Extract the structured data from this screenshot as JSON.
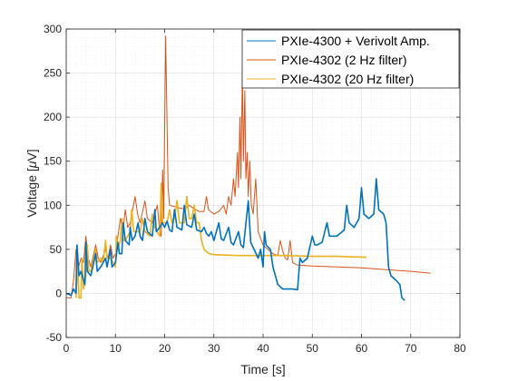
{
  "chart_data": {
    "type": "line",
    "xlabel": "Time [s]",
    "ylabel_prefix": "Voltage [",
    "ylabel_mu": "μ",
    "ylabel_suffix": "V]",
    "xlim": [
      0,
      80
    ],
    "ylim": [
      -50,
      300
    ],
    "xticks": [
      0,
      10,
      20,
      30,
      40,
      50,
      60,
      70,
      80
    ],
    "yticks": [
      -50,
      0,
      50,
      100,
      150,
      200,
      250,
      300
    ],
    "grid": true,
    "minor_grid": true,
    "legend_position": "top-right",
    "series": [
      {
        "name": "PXIe-4300 + Verivolt Amp.",
        "color": "#0072BD",
        "points": [
          [
            0,
            0
          ],
          [
            1,
            -2
          ],
          [
            1.5,
            5
          ],
          [
            2,
            0
          ],
          [
            2.2,
            55
          ],
          [
            2.6,
            20
          ],
          [
            3,
            25
          ],
          [
            3.8,
            10
          ],
          [
            4,
            58
          ],
          [
            4.3,
            25
          ],
          [
            5,
            20
          ],
          [
            6,
            45
          ],
          [
            6.3,
            25
          ],
          [
            7,
            30
          ],
          [
            8,
            40
          ],
          [
            8.3,
            30
          ],
          [
            9,
            50
          ],
          [
            9.3,
            30
          ],
          [
            10,
            35
          ],
          [
            10.5,
            58
          ],
          [
            10.8,
            45
          ],
          [
            11.3,
            45
          ],
          [
            11.6,
            80
          ],
          [
            12,
            60
          ],
          [
            12.8,
            55
          ],
          [
            13,
            75
          ],
          [
            13.4,
            60
          ],
          [
            14,
            65
          ],
          [
            14.6,
            80
          ],
          [
            15,
            65
          ],
          [
            15.5,
            60
          ],
          [
            16,
            85
          ],
          [
            16.5,
            70
          ],
          [
            17.5,
            65
          ],
          [
            18,
            95
          ],
          [
            18.3,
            70
          ],
          [
            19,
            75
          ],
          [
            19.5,
            80
          ],
          [
            20,
            75
          ],
          [
            20.5,
            82
          ],
          [
            21,
            72
          ],
          [
            21.5,
            70
          ],
          [
            22,
            95
          ],
          [
            22.5,
            75
          ],
          [
            23.5,
            72
          ],
          [
            24,
            100
          ],
          [
            24.5,
            78
          ],
          [
            25.5,
            75
          ],
          [
            26,
            90
          ],
          [
            26.5,
            72
          ],
          [
            27.5,
            70
          ],
          [
            28,
            75
          ],
          [
            28.5,
            68
          ],
          [
            29,
            65
          ],
          [
            29.5,
            70
          ],
          [
            30,
            60
          ],
          [
            31,
            80
          ],
          [
            31.5,
            62
          ],
          [
            32,
            60
          ],
          [
            33,
            75
          ],
          [
            33.5,
            58
          ],
          [
            34,
            55
          ],
          [
            35,
            70
          ],
          [
            35.5,
            55
          ],
          [
            36,
            52
          ],
          [
            37,
            105
          ],
          [
            37.5,
            58
          ],
          [
            38,
            52
          ],
          [
            39,
            40
          ],
          [
            39.5,
            50
          ],
          [
            40,
            30
          ],
          [
            40.3,
            70
          ],
          [
            40.6,
            55
          ],
          [
            41.5,
            50
          ],
          [
            42,
            30
          ],
          [
            42.5,
            20
          ],
          [
            43,
            10
          ],
          [
            44,
            5
          ],
          [
            46,
            5
          ],
          [
            47,
            4
          ],
          [
            47.5,
            40
          ],
          [
            48,
            35
          ],
          [
            49,
            40
          ],
          [
            50,
            65
          ],
          [
            50.5,
            55
          ],
          [
            51,
            55
          ],
          [
            52,
            58
          ],
          [
            53,
            80
          ],
          [
            53.5,
            65
          ],
          [
            55,
            65
          ],
          [
            56.5,
            72
          ],
          [
            57,
            100
          ],
          [
            57.5,
            80
          ],
          [
            58.5,
            75
          ],
          [
            59.5,
            85
          ],
          [
            60,
            120
          ],
          [
            60.5,
            90
          ],
          [
            61.5,
            85
          ],
          [
            62.5,
            90
          ],
          [
            63,
            130
          ],
          [
            63.5,
            95
          ],
          [
            64.5,
            90
          ],
          [
            65,
            80
          ],
          [
            65.5,
            30
          ],
          [
            66,
            20
          ],
          [
            67,
            15
          ],
          [
            67.8,
            10
          ],
          [
            68.2,
            -5
          ],
          [
            68.8,
            -8
          ]
        ]
      },
      {
        "name": "PXIe-4302 (2 Hz filter)",
        "color": "#D95319",
        "points": [
          [
            0,
            -5
          ],
          [
            1,
            -5
          ],
          [
            1.5,
            15
          ],
          [
            2,
            50
          ],
          [
            2.5,
            30
          ],
          [
            3,
            40
          ],
          [
            3.5,
            35
          ],
          [
            4,
            65
          ],
          [
            4.5,
            40
          ],
          [
            5,
            30
          ],
          [
            6,
            55
          ],
          [
            6.5,
            40
          ],
          [
            7,
            35
          ],
          [
            8,
            50
          ],
          [
            8.5,
            40
          ],
          [
            9,
            55
          ],
          [
            9.5,
            40
          ],
          [
            10,
            45
          ],
          [
            11,
            85
          ],
          [
            11.5,
            70
          ],
          [
            12,
            95
          ],
          [
            12.5,
            75
          ],
          [
            13,
            80
          ],
          [
            14,
            110
          ],
          [
            14.5,
            90
          ],
          [
            15,
            80
          ],
          [
            16,
            105
          ],
          [
            16.5,
            85
          ],
          [
            17.5,
            80
          ],
          [
            18.5,
            100
          ],
          [
            19,
            70
          ],
          [
            19.3,
            65
          ],
          [
            19.6,
            140
          ],
          [
            19.8,
            85
          ],
          [
            20.2,
            292
          ],
          [
            20.7,
            120
          ],
          [
            21,
            100
          ],
          [
            23,
            97
          ],
          [
            24,
            96
          ],
          [
            25,
            100
          ],
          [
            26,
            96
          ],
          [
            27,
            93
          ],
          [
            28,
            93
          ],
          [
            28.5,
            110
          ],
          [
            28.9,
            95
          ],
          [
            30,
            90
          ],
          [
            31,
            93
          ],
          [
            32,
            100
          ],
          [
            32.5,
            90
          ],
          [
            33,
            110
          ],
          [
            33.5,
            100
          ],
          [
            34,
            130
          ],
          [
            34.3,
            110
          ],
          [
            34.8,
            160
          ],
          [
            35,
            120
          ],
          [
            35.3,
            200
          ],
          [
            35.5,
            130
          ],
          [
            35.8,
            253
          ],
          [
            36,
            150
          ],
          [
            36.3,
            230
          ],
          [
            36.5,
            130
          ],
          [
            36.8,
            160
          ],
          [
            37,
            110
          ],
          [
            37.3,
            150
          ],
          [
            37.6,
            100
          ],
          [
            38,
            90
          ],
          [
            38.5,
            130
          ],
          [
            39,
            70
          ],
          [
            40,
            55
          ],
          [
            41,
            50
          ],
          [
            42,
            45
          ],
          [
            43,
            43
          ],
          [
            43.5,
            60
          ],
          [
            44,
            48
          ],
          [
            44.5,
            40
          ],
          [
            45,
            38
          ],
          [
            45.5,
            60
          ],
          [
            46,
            35
          ],
          [
            47,
            32
          ],
          [
            50,
            31
          ],
          [
            55,
            30
          ],
          [
            60,
            29
          ],
          [
            65,
            27
          ],
          [
            70,
            25
          ],
          [
            74,
            23
          ]
        ]
      },
      {
        "name": "PXIe-4302 (20 Hz filter)",
        "color": "#EDB120",
        "points": [
          [
            2,
            -5
          ],
          [
            2.3,
            35
          ],
          [
            2.6,
            -5
          ],
          [
            3,
            -5
          ],
          [
            3.2,
            40
          ],
          [
            3.5,
            5
          ],
          [
            4,
            20
          ],
          [
            4.3,
            55
          ],
          [
            4.6,
            25
          ],
          [
            5,
            25
          ],
          [
            6,
            50
          ],
          [
            6.3,
            35
          ],
          [
            7,
            40
          ],
          [
            7.5,
            35
          ],
          [
            8,
            60
          ],
          [
            8.3,
            40
          ],
          [
            9,
            40
          ],
          [
            9.5,
            35
          ],
          [
            10,
            30
          ],
          [
            10.2,
            65
          ],
          [
            10.5,
            50
          ],
          [
            11,
            60
          ],
          [
            11.3,
            85
          ],
          [
            11.6,
            60
          ],
          [
            12,
            60
          ],
          [
            13,
            70
          ],
          [
            13.3,
            95
          ],
          [
            13.7,
            70
          ],
          [
            15,
            70
          ],
          [
            15.5,
            85
          ],
          [
            16,
            70
          ],
          [
            17,
            65
          ],
          [
            17.5,
            90
          ],
          [
            18,
            75
          ],
          [
            19,
            65
          ],
          [
            19.3,
            125
          ],
          [
            19.6,
            80
          ],
          [
            20.5,
            80
          ],
          [
            21,
            95
          ],
          [
            21.5,
            80
          ],
          [
            22,
            85
          ],
          [
            22.5,
            105
          ],
          [
            23,
            80
          ],
          [
            24,
            80
          ],
          [
            24.5,
            110
          ],
          [
            25,
            85
          ],
          [
            25.5,
            85
          ],
          [
            26,
            100
          ],
          [
            26.5,
            80
          ],
          [
            27,
            80
          ],
          [
            27.5,
            60
          ],
          [
            28,
            50
          ],
          [
            29,
            45
          ],
          [
            30,
            44
          ],
          [
            35,
            43
          ],
          [
            40,
            43
          ],
          [
            45,
            43
          ],
          [
            50,
            42
          ],
          [
            55,
            42
          ],
          [
            61,
            41
          ]
        ]
      }
    ]
  }
}
